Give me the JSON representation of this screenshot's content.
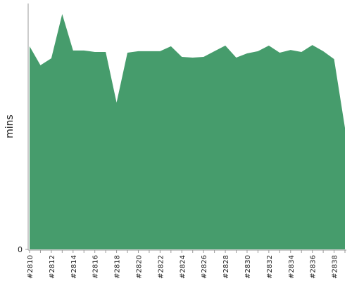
{
  "chart_data": {
    "type": "area",
    "y_label": "mins",
    "color": "#469c6c",
    "categories": [
      "#2810",
      null,
      "#2812",
      null,
      "#2814",
      null,
      "#2816",
      null,
      "#2818",
      null,
      "#2820",
      null,
      "#2822",
      null,
      "#2824",
      null,
      "#2826",
      null,
      "#2828",
      null,
      "#2830",
      null,
      "#2832",
      null,
      "#2834",
      null,
      "#2836",
      null,
      "#2838",
      null
    ],
    "values": [
      82.6,
      74.9,
      77.7,
      95.7,
      80.9,
      80.9,
      80.3,
      80.3,
      59.7,
      80,
      80.6,
      80.6,
      80.6,
      82.6,
      78.3,
      78,
      78.3,
      80.6,
      82.9,
      78,
      79.7,
      80.6,
      82.9,
      80,
      81.1,
      80.3,
      83.1,
      80.6,
      77.4,
      49.4
    ],
    "ylim": [
      0,
      100
    ],
    "yticks": [
      0
    ]
  }
}
